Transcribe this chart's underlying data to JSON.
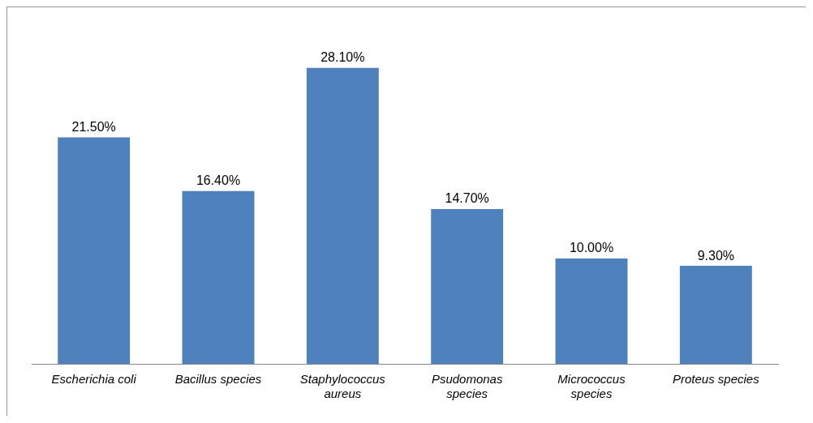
{
  "chart_data": {
    "type": "bar",
    "categories": [
      "Escherichia coli",
      "Bacillus species",
      "Staphylococcus aureus",
      "Psudomonas species",
      "Micrococcus species",
      "Proteus species"
    ],
    "values": [
      21.5,
      16.4,
      28.1,
      14.7,
      10.0,
      9.3
    ],
    "value_labels": [
      "21.50%",
      "16.40%",
      "28.10%",
      "14.70%",
      "10.00%",
      "9.30%"
    ],
    "color": "#4f81bd",
    "legend": false,
    "grid": false,
    "tick_labels": "x"
  }
}
